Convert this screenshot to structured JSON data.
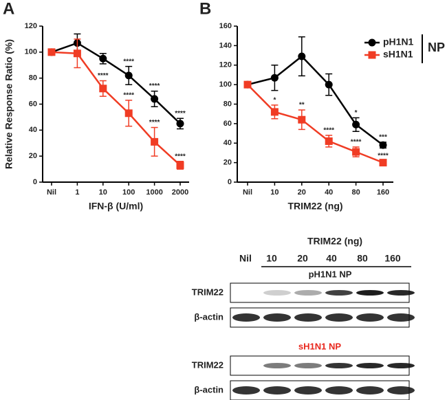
{
  "chart_data": [
    {
      "type": "line",
      "panel": "A",
      "x_label": "IFN-β (U/ml)",
      "y_label": "Relative Response Ratio (%)",
      "categories": [
        "Nil",
        "1",
        "10",
        "100",
        "1000",
        "2000"
      ],
      "ylim": [
        0,
        120
      ],
      "yticks": [
        0,
        20,
        40,
        60,
        80,
        100,
        120
      ],
      "series": [
        {
          "name": "pH1N1",
          "color": "#000000",
          "marker": "circle",
          "values": [
            100,
            107,
            95,
            82,
            64,
            45
          ],
          "errors": [
            0,
            7,
            4,
            7,
            6,
            4
          ],
          "significance": [
            null,
            null,
            null,
            "****",
            "****",
            "****"
          ]
        },
        {
          "name": "sH1N1",
          "color": "#f03c24",
          "marker": "square",
          "values": [
            100,
            99,
            72,
            53,
            31,
            13
          ],
          "errors": [
            0,
            11,
            6,
            10,
            11,
            3
          ],
          "significance": [
            null,
            null,
            "****",
            "****",
            "****",
            "****"
          ]
        }
      ]
    },
    {
      "type": "line",
      "panel": "B",
      "x_label": "TRIM22 (ng)",
      "legend_group_label": "NP",
      "categories": [
        "Nil",
        "10",
        "20",
        "40",
        "80",
        "160"
      ],
      "ylim": [
        0,
        160
      ],
      "yticks": [
        0,
        20,
        40,
        60,
        80,
        100,
        120,
        140,
        160
      ],
      "series": [
        {
          "name": "pH1N1",
          "color": "#000000",
          "marker": "circle",
          "values": [
            100,
            107,
            129,
            100,
            59,
            38
          ],
          "errors": [
            0,
            13,
            20,
            11,
            7,
            3
          ],
          "significance": [
            null,
            null,
            null,
            null,
            "*",
            "***"
          ]
        },
        {
          "name": "sH1N1",
          "color": "#f03c24",
          "marker": "square",
          "values": [
            100,
            72,
            64,
            42,
            31,
            20
          ],
          "errors": [
            0,
            7,
            10,
            6,
            5,
            2
          ],
          "significance": [
            null,
            "*",
            "**",
            "****",
            "****",
            "****"
          ]
        }
      ]
    }
  ],
  "blot": {
    "header": "TRIM22 (ng)",
    "lanes": [
      "Nil",
      "10",
      "20",
      "40",
      "80",
      "160"
    ],
    "panels": [
      {
        "title": "pH1N1 NP",
        "rows": [
          "TRIM22",
          "β-actin"
        ]
      },
      {
        "title": "sH1N1 NP",
        "rows": [
          "TRIM22",
          "β-actin"
        ]
      }
    ]
  }
}
